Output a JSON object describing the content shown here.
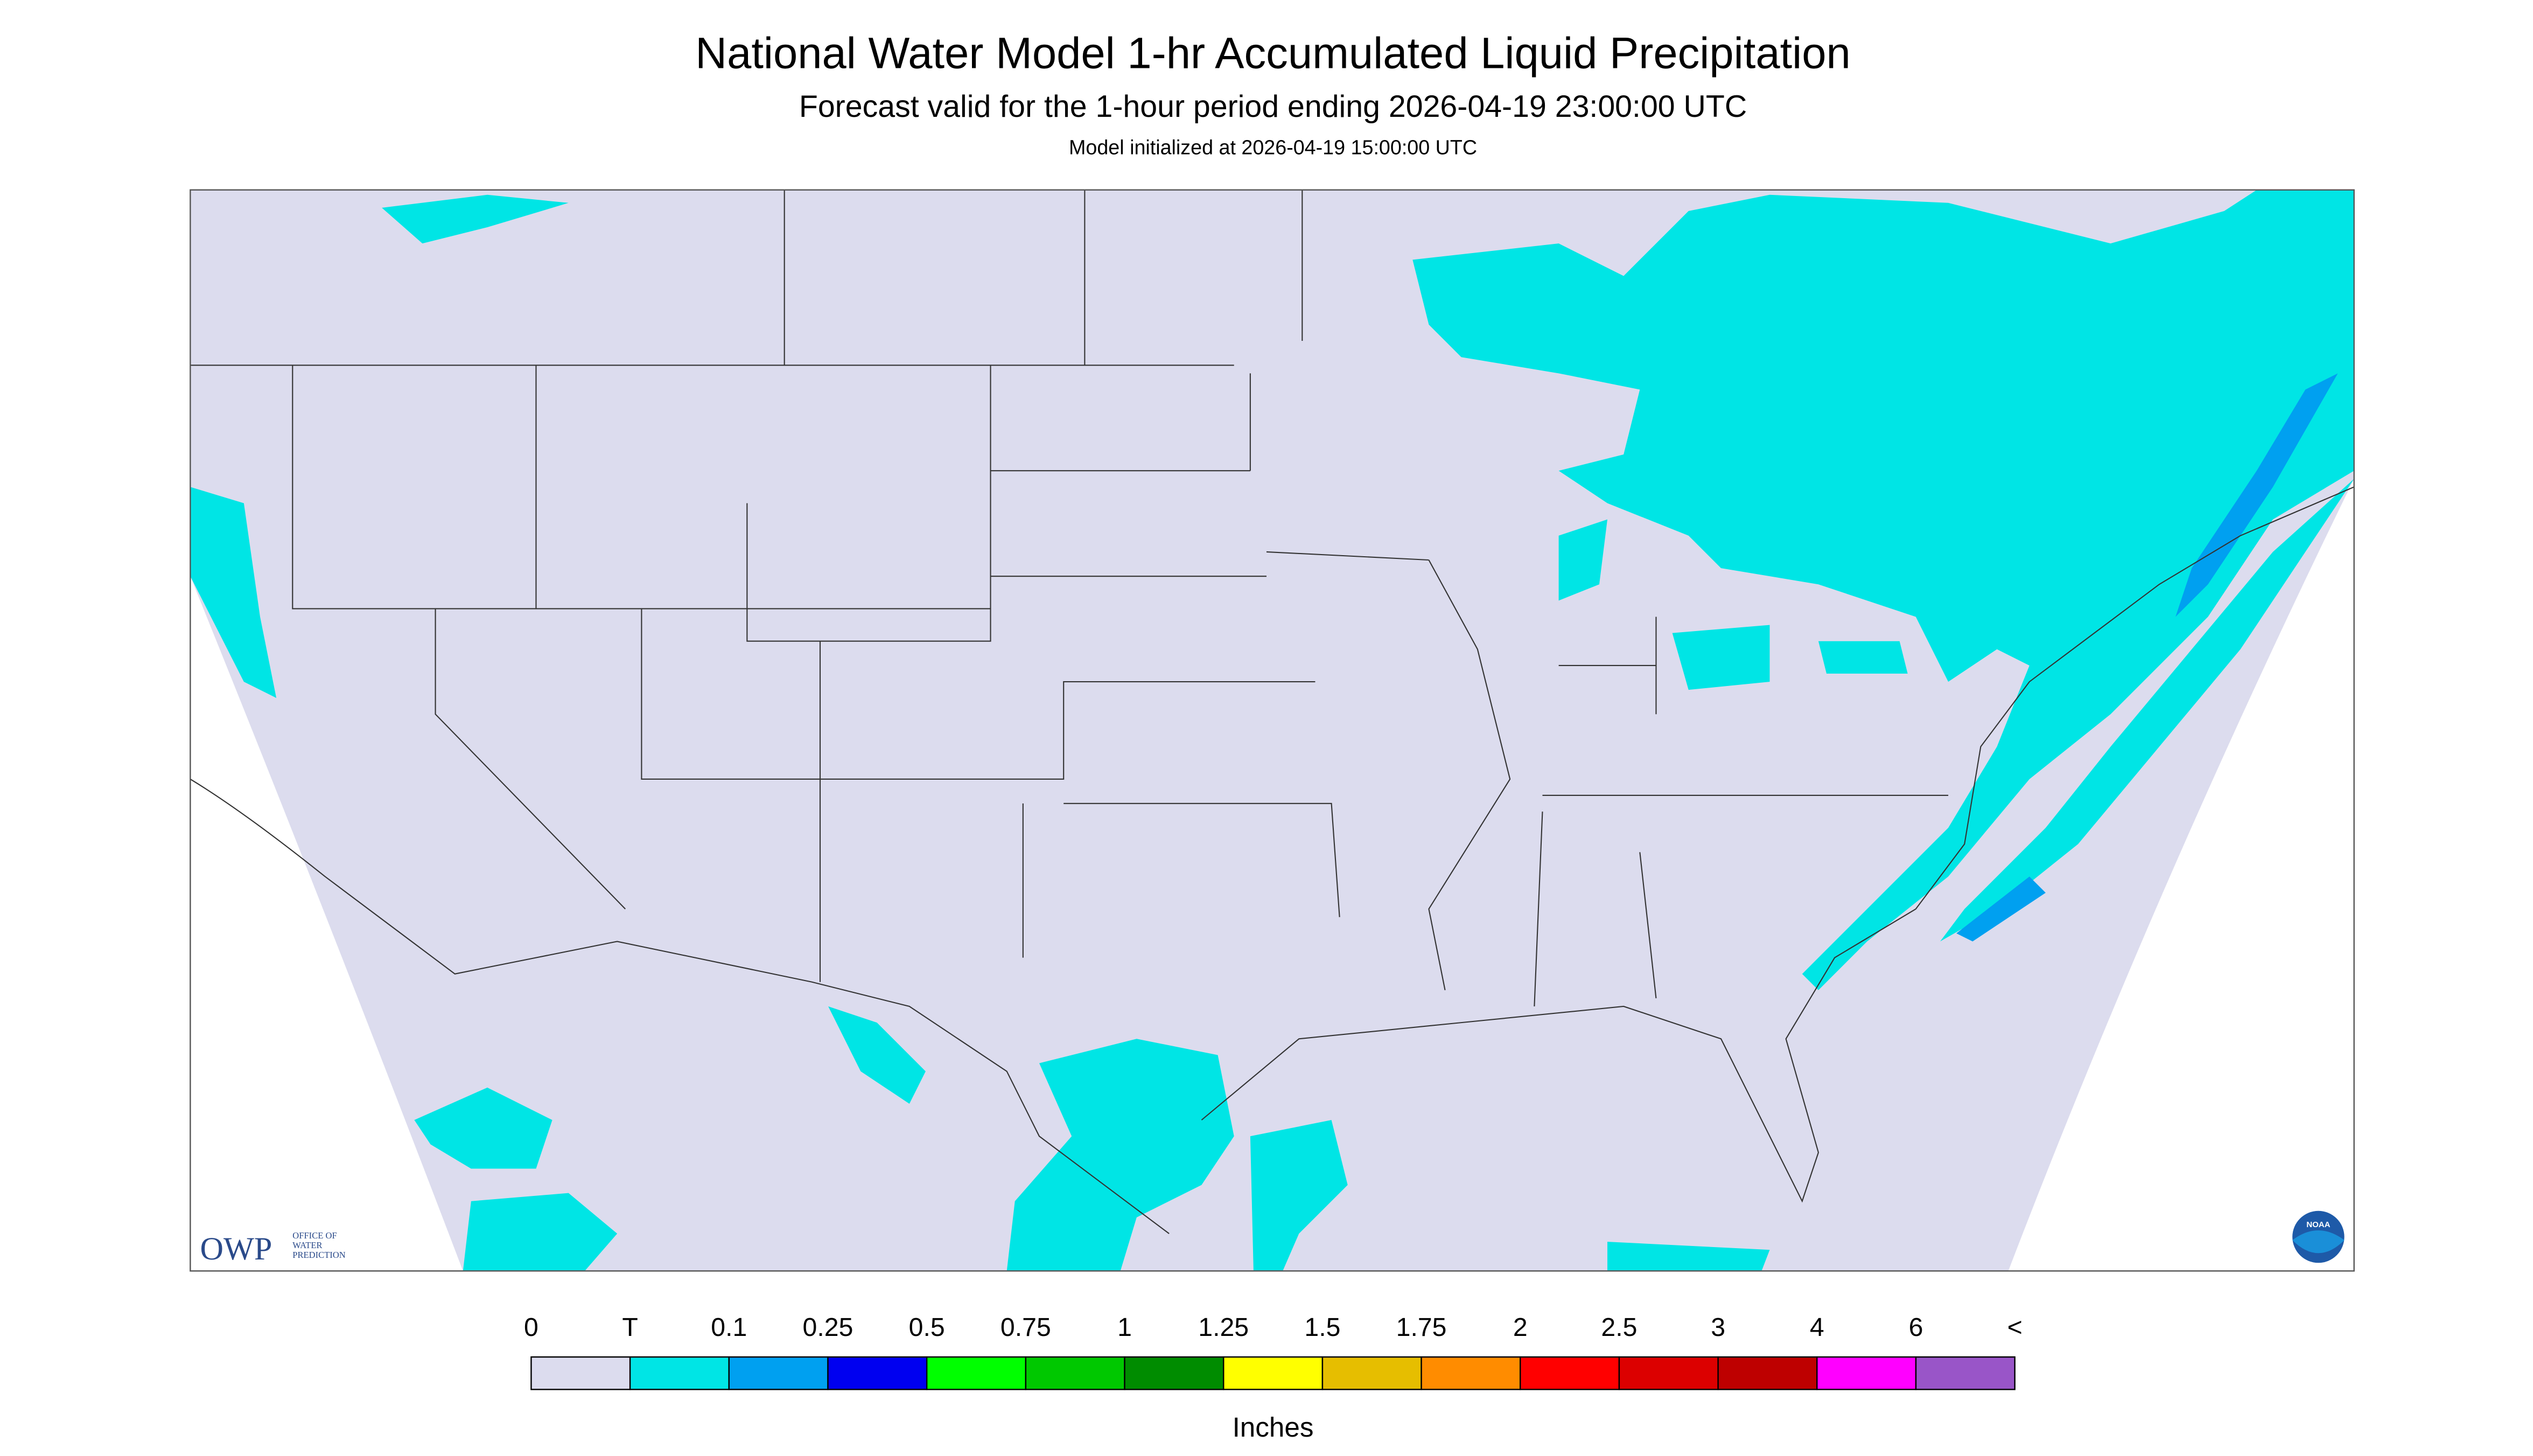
{
  "header": {
    "title": "National Water Model 1-hr Accumulated Liquid Precipitation",
    "subtitle": "Forecast valid for the 1-hour period ending 2026-04-19 23:00:00 UTC",
    "initialized": "Model initialized at 2026-04-19 15:00:00 UTC"
  },
  "legend": {
    "labels": [
      "0",
      "T",
      "0.1",
      "0.25",
      "0.5",
      "0.75",
      "1",
      "1.25",
      "1.5",
      "1.75",
      "2",
      "2.5",
      "3",
      "4",
      "6",
      "<"
    ],
    "colors": [
      "#dcdcee",
      "#00e5e5",
      "#00a0f0",
      "#0000f0",
      "#00ff00",
      "#00c800",
      "#008c00",
      "#ffff00",
      "#e6be00",
      "#ff8c00",
      "#ff0000",
      "#dc0000",
      "#be0000",
      "#ff00ff",
      "#9955c8"
    ],
    "units": "Inches"
  },
  "logos": {
    "owp": "OWP",
    "owp_lines": [
      "OFFICE OF",
      "WATER",
      "PREDICTION"
    ],
    "noaa": "NOAA"
  }
}
